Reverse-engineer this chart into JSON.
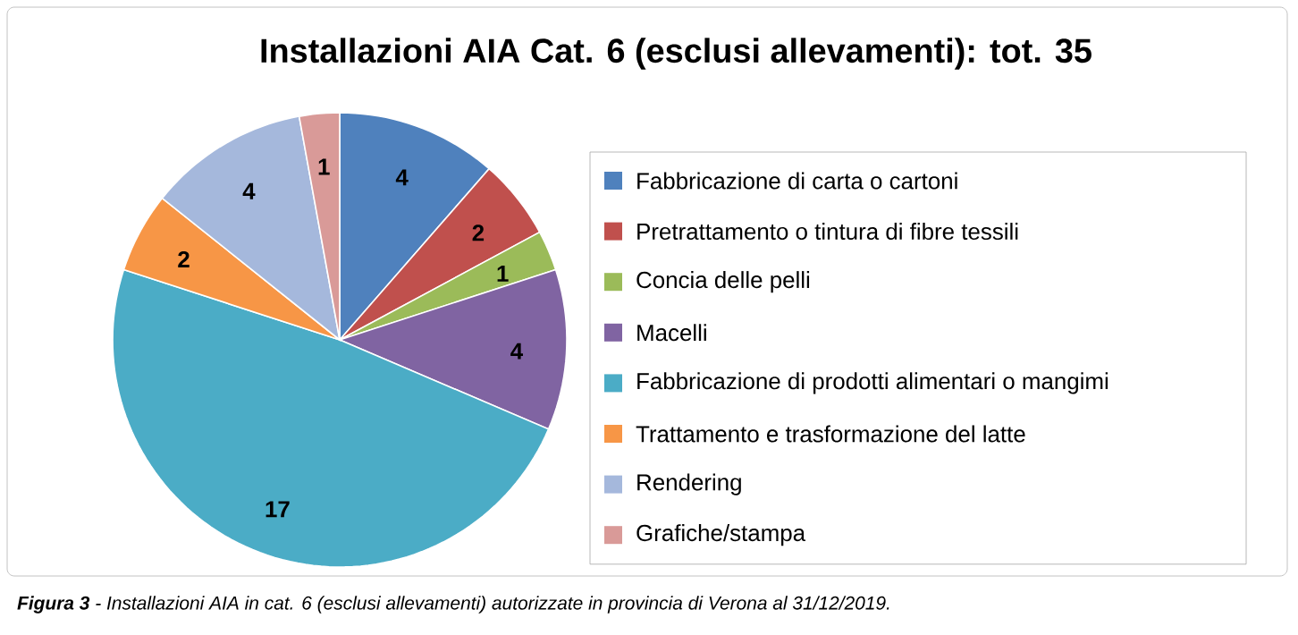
{
  "chart_data": {
    "type": "pie",
    "title": "Installazioni AIA Cat. 6 (esclusi allevamenti): tot. 35",
    "categories": [
      "Fabbricazione di carta o cartoni",
      "Pretrattamento o tintura di fibre tessili",
      "Concia delle pelli",
      "Macelli",
      "Fabbricazione di prodotti alimentari o mangimi",
      "Trattamento e trasformazione del latte",
      "Rendering",
      "Grafiche/stampa"
    ],
    "values": [
      4,
      2,
      1,
      4,
      17,
      2,
      4,
      1
    ],
    "colors": [
      "#4F81BD",
      "#C0504D",
      "#9BBB59",
      "#8064A2",
      "#4BACC6",
      "#F79646",
      "#A5B8DC",
      "#D99A98"
    ],
    "data_labels": true,
    "legend": "right",
    "annotations": [
      "**Figura 3** - Installazioni AIA in cat. 6 (esclusi allevamenti) autorizzate in provincia di Verona al 31/12/2019."
    ]
  }
}
